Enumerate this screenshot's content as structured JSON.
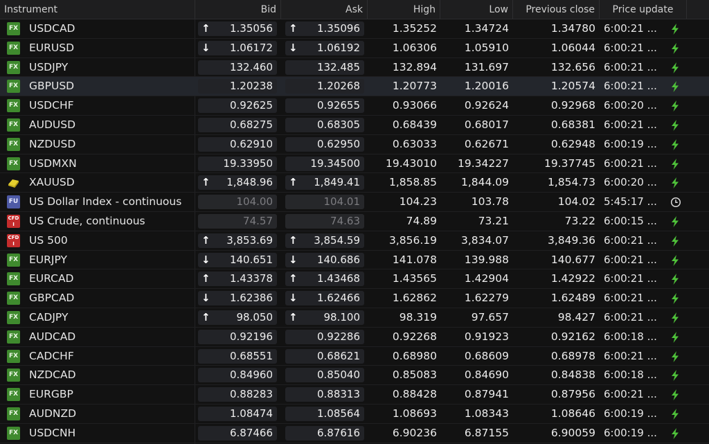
{
  "columns": {
    "instrument": "Instrument",
    "bid": "Bid",
    "ask": "Ask",
    "high": "High",
    "low": "Low",
    "prev_close": "Previous close",
    "price_update": "Price update"
  },
  "colors": {
    "fx_badge": "#3f8a2e",
    "fu_badge": "#4e5aa6",
    "cfd_badge": "#c42c2c",
    "live_icon": "#4fc23a",
    "row_selected": "#23262c"
  },
  "rows": [
    {
      "type": "FX",
      "instrument": "USDCAD",
      "dir": "up",
      "bid": "1.35056",
      "ask": "1.35096",
      "high": "1.35252",
      "low": "1.34724",
      "prev_close": "1.34780",
      "update": "6:00:21 ...",
      "status": "live-icon"
    },
    {
      "type": "FX",
      "instrument": "EURUSD",
      "dir": "down",
      "bid": "1.06172",
      "ask": "1.06192",
      "high": "1.06306",
      "low": "1.05910",
      "prev_close": "1.06044",
      "update": "6:00:21 ...",
      "status": "live-icon"
    },
    {
      "type": "FX",
      "instrument": "USDJPY",
      "dir": "",
      "bid": "132.460",
      "ask": "132.485",
      "high": "132.894",
      "low": "131.697",
      "prev_close": "132.656",
      "update": "6:00:21 ...",
      "status": "live-icon"
    },
    {
      "type": "FX",
      "instrument": "GBPUSD",
      "dir": "",
      "bid": "1.20238",
      "ask": "1.20268",
      "high": "1.20773",
      "low": "1.20016",
      "prev_close": "1.20574",
      "update": "6:00:21 ...",
      "status": "live-icon",
      "selected": true
    },
    {
      "type": "FX",
      "instrument": "USDCHF",
      "dir": "",
      "bid": "0.92625",
      "ask": "0.92655",
      "high": "0.93066",
      "low": "0.92624",
      "prev_close": "0.92968",
      "update": "6:00:20 ...",
      "status": "live-icon"
    },
    {
      "type": "FX",
      "instrument": "AUDUSD",
      "dir": "",
      "bid": "0.68275",
      "ask": "0.68305",
      "high": "0.68439",
      "low": "0.68017",
      "prev_close": "0.68381",
      "update": "6:00:21 ...",
      "status": "live-icon"
    },
    {
      "type": "FX",
      "instrument": "NZDUSD",
      "dir": "",
      "bid": "0.62910",
      "ask": "0.62950",
      "high": "0.63033",
      "low": "0.62671",
      "prev_close": "0.62948",
      "update": "6:00:19 ...",
      "status": "live-icon"
    },
    {
      "type": "FX",
      "instrument": "USDMXN",
      "dir": "",
      "bid": "19.33950",
      "ask": "19.34500",
      "high": "19.43010",
      "low": "19.34227",
      "prev_close": "19.37745",
      "update": "6:00:21 ...",
      "status": "live-icon"
    },
    {
      "type": "METAL",
      "instrument": "XAUUSD",
      "dir": "up",
      "bid": "1,848.96",
      "ask": "1,849.41",
      "high": "1,858.85",
      "low": "1,844.09",
      "prev_close": "1,854.73",
      "update": "6:00:20 ...",
      "status": "live-icon"
    },
    {
      "type": "FU",
      "instrument": "US Dollar Index - continuous",
      "dir": "",
      "bid": "104.00",
      "ask": "104.01",
      "high": "104.23",
      "low": "103.78",
      "prev_close": "104.02",
      "update": "5:45:17 ...",
      "status": "clock-icon",
      "stale": true
    },
    {
      "type": "CFD",
      "instrument": "US Crude, continuous",
      "dir": "",
      "bid": "74.57",
      "ask": "74.63",
      "high": "74.89",
      "low": "73.21",
      "prev_close": "73.22",
      "update": "6:00:15 ...",
      "status": "live-icon",
      "stale": true
    },
    {
      "type": "CFD",
      "instrument": "US 500",
      "dir": "up",
      "bid": "3,853.69",
      "ask": "3,854.59",
      "high": "3,856.19",
      "low": "3,834.07",
      "prev_close": "3,849.36",
      "update": "6:00:21 ...",
      "status": "live-icon"
    },
    {
      "type": "FX",
      "instrument": "EURJPY",
      "dir": "down",
      "bid": "140.651",
      "ask": "140.686",
      "high": "141.078",
      "low": "139.988",
      "prev_close": "140.677",
      "update": "6:00:21 ...",
      "status": "live-icon"
    },
    {
      "type": "FX",
      "instrument": "EURCAD",
      "dir": "up",
      "bid": "1.43378",
      "ask": "1.43468",
      "high": "1.43565",
      "low": "1.42904",
      "prev_close": "1.42922",
      "update": "6:00:21 ...",
      "status": "live-icon"
    },
    {
      "type": "FX",
      "instrument": "GBPCAD",
      "dir": "down",
      "bid": "1.62386",
      "ask": "1.62466",
      "high": "1.62862",
      "low": "1.62279",
      "prev_close": "1.62489",
      "update": "6:00:21 ...",
      "status": "live-icon"
    },
    {
      "type": "FX",
      "instrument": "CADJPY",
      "dir": "up",
      "bid": "98.050",
      "ask": "98.100",
      "high": "98.319",
      "low": "97.657",
      "prev_close": "98.427",
      "update": "6:00:21 ...",
      "status": "live-icon"
    },
    {
      "type": "FX",
      "instrument": "AUDCAD",
      "dir": "",
      "bid": "0.92196",
      "ask": "0.92286",
      "high": "0.92268",
      "low": "0.91923",
      "prev_close": "0.92162",
      "update": "6:00:18 ...",
      "status": "live-icon"
    },
    {
      "type": "FX",
      "instrument": "CADCHF",
      "dir": "",
      "bid": "0.68551",
      "ask": "0.68621",
      "high": "0.68980",
      "low": "0.68609",
      "prev_close": "0.68978",
      "update": "6:00:21 ...",
      "status": "live-icon"
    },
    {
      "type": "FX",
      "instrument": "NZDCAD",
      "dir": "",
      "bid": "0.84960",
      "ask": "0.85040",
      "high": "0.85083",
      "low": "0.84690",
      "prev_close": "0.84838",
      "update": "6:00:18 ...",
      "status": "live-icon"
    },
    {
      "type": "FX",
      "instrument": "EURGBP",
      "dir": "",
      "bid": "0.88283",
      "ask": "0.88313",
      "high": "0.88428",
      "low": "0.87941",
      "prev_close": "0.87956",
      "update": "6:00:21 ...",
      "status": "live-icon"
    },
    {
      "type": "FX",
      "instrument": "AUDNZD",
      "dir": "",
      "bid": "1.08474",
      "ask": "1.08564",
      "high": "1.08693",
      "low": "1.08343",
      "prev_close": "1.08646",
      "update": "6:00:19 ...",
      "status": "live-icon"
    },
    {
      "type": "FX",
      "instrument": "USDCNH",
      "dir": "",
      "bid": "6.87466",
      "ask": "6.87616",
      "high": "6.90236",
      "low": "6.87155",
      "prev_close": "6.90059",
      "update": "6:00:19 ...",
      "status": "live-icon"
    }
  ]
}
